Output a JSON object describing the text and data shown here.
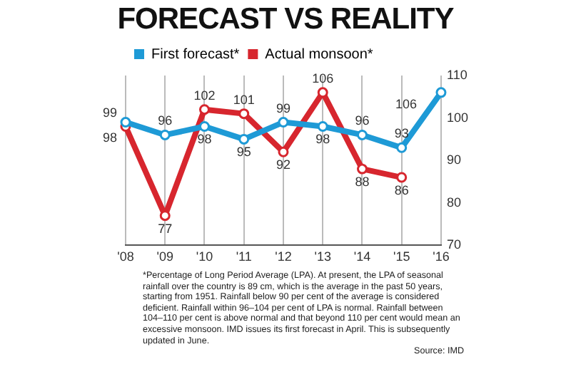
{
  "chart_data": {
    "type": "line",
    "title": "FORECAST VS REALITY",
    "categories": [
      "'08",
      "'09",
      "'10",
      "'11",
      "'12",
      "'13",
      "'14",
      "'15",
      "'16"
    ],
    "series": [
      {
        "name": "First forecast*",
        "color": "#1e9ad6",
        "values": [
          99,
          96,
          98,
          95,
          99,
          98,
          96,
          93,
          106
        ]
      },
      {
        "name": "Actual monsoon*",
        "color": "#d7262e",
        "values": [
          98,
          77,
          102,
          101,
          92,
          106,
          88,
          86,
          null
        ]
      }
    ],
    "ylim": [
      70,
      110
    ],
    "yticks": [
      70,
      80,
      90,
      100,
      110
    ],
    "grid": "x",
    "legend": "top left",
    "marker": "circle",
    "line_style": "solid",
    "data_labels": true,
    "annotations": [
      "*Percentage of Long Period Average (LPA). At present, the LPA of seasonal rainfall over the country is 89 cm, which is the average in the past 50 years, starting from 1951. Rainfall below 90 per cent of the average is considered deficient. Rainfall within 96–104 per cent of LPA is normal. Rainfall between 104–110 per cent is above normal and that beyond 110 per cent would mean an excessive monsoon. IMD issues its first forecast in April. This is subsequently updated in June.",
      "Source: IMD"
    ]
  }
}
